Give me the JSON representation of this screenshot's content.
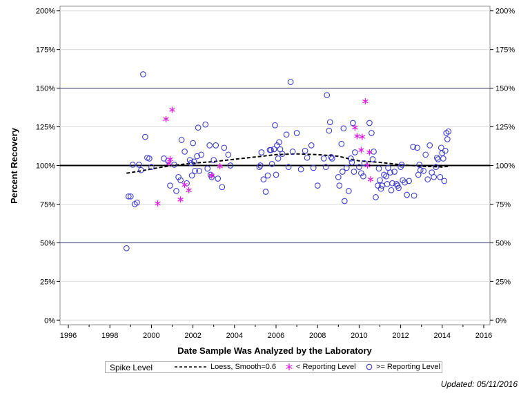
{
  "chart_data": {
    "type": "scatter",
    "title": "",
    "xlabel": "Date Sample Was Analyzed by the Laboratory",
    "ylabel": "Percent Recovery",
    "xlim": [
      1995.6,
      2016.3
    ],
    "ylim": [
      -3,
      203
    ],
    "x_ticks": [
      1996,
      1998,
      2000,
      2002,
      2004,
      2006,
      2008,
      2010,
      2012,
      2014,
      2016
    ],
    "x_tick_labels": [
      "1996",
      "1998",
      "2000",
      "2002",
      "2004",
      "2006",
      "2008",
      "2010",
      "2012",
      "2014",
      "2016"
    ],
    "y_ticks": [
      0,
      25,
      50,
      75,
      100,
      125,
      150,
      175,
      200
    ],
    "y_tick_labels": [
      "0%",
      "25%",
      "50%",
      "75%",
      "100%",
      "125%",
      "150%",
      "175%",
      "200%"
    ],
    "reference_lines": {
      "thick": [
        100
      ],
      "thin": [
        50,
        150
      ],
      "grid_color": "#dcdcdc",
      "thin_color": "#2a2a66"
    },
    "legend": {
      "title": "Spike Level",
      "loess_label": "Loess, Smooth=0.6",
      "below_label": "< Reporting Level",
      "above_label": ">= Reporting Level"
    },
    "colors": {
      "circle": "#3d3dc8",
      "star": "#e020e0",
      "loess": "#000000"
    },
    "series": [
      {
        "name": "Loess, Smooth=0.6",
        "style": "dashed-line",
        "points": [
          [
            1998.8,
            95
          ],
          [
            1999.5,
            96.5
          ],
          [
            2000.3,
            98.5
          ],
          [
            2001.0,
            100
          ],
          [
            2002.0,
            101.5
          ],
          [
            2003.0,
            102.5
          ],
          [
            2004.0,
            104
          ],
          [
            2005.0,
            105.5
          ],
          [
            2006.0,
            107
          ],
          [
            2007.0,
            107.5
          ],
          [
            2008.0,
            107
          ],
          [
            2009.0,
            106
          ],
          [
            2009.6,
            104
          ],
          [
            2010.0,
            103
          ],
          [
            2010.5,
            102.5
          ],
          [
            2011.0,
            102
          ],
          [
            2012.0,
            100.5
          ],
          [
            2013.0,
            99.5
          ],
          [
            2014.0,
            99
          ],
          [
            2014.3,
            99.5
          ]
        ]
      },
      {
        "name": "< Reporting Level",
        "style": "star",
        "points": [
          [
            2001.0,
            136
          ],
          [
            2000.7,
            130
          ],
          [
            2000.9,
            104
          ],
          [
            2000.85,
            101.5
          ],
          [
            2000.3,
            75.5
          ],
          [
            2001.4,
            78
          ],
          [
            2001.6,
            87.5
          ],
          [
            2001.8,
            84
          ],
          [
            2002.9,
            93.5
          ],
          [
            2003.3,
            99.5
          ],
          [
            2009.8,
            124.5
          ],
          [
            2010.3,
            141.5
          ],
          [
            2010.1,
            110
          ],
          [
            2010.5,
            108.5
          ],
          [
            2009.9,
            119
          ],
          [
            2010.15,
            118.5
          ],
          [
            2010.4,
            100
          ],
          [
            2010.55,
            91
          ]
        ]
      },
      {
        "name": ">= Reporting Level",
        "style": "circle",
        "points": [
          [
            1998.8,
            46.5
          ],
          [
            1998.9,
            80
          ],
          [
            1999.0,
            80
          ],
          [
            1999.1,
            100.5
          ],
          [
            1999.2,
            75
          ],
          [
            1999.3,
            76
          ],
          [
            1999.4,
            100.5
          ],
          [
            1999.5,
            97
          ],
          [
            1999.6,
            159
          ],
          [
            1999.7,
            118.5
          ],
          [
            1999.8,
            105
          ],
          [
            1999.9,
            104.5
          ],
          [
            2000.0,
            99
          ],
          [
            2000.6,
            104.5
          ],
          [
            2000.8,
            103
          ],
          [
            2000.9,
            87
          ],
          [
            2001.1,
            100.5
          ],
          [
            2001.2,
            83.5
          ],
          [
            2001.3,
            92.5
          ],
          [
            2001.4,
            90.5
          ],
          [
            2001.45,
            116.5
          ],
          [
            2001.6,
            109
          ],
          [
            2001.7,
            88.5
          ],
          [
            2001.85,
            103.5
          ],
          [
            2001.9,
            101.5
          ],
          [
            2001.95,
            93.5
          ],
          [
            2002.0,
            114.5
          ],
          [
            2002.05,
            102.5
          ],
          [
            2002.1,
            96.5
          ],
          [
            2002.2,
            106
          ],
          [
            2002.25,
            124.5
          ],
          [
            2002.3,
            96.5
          ],
          [
            2002.4,
            107
          ],
          [
            2002.6,
            126.5
          ],
          [
            2002.7,
            98
          ],
          [
            2002.8,
            113
          ],
          [
            2002.85,
            94
          ],
          [
            2002.9,
            92.5
          ],
          [
            2003.0,
            103.5
          ],
          [
            2003.1,
            113
          ],
          [
            2003.2,
            91.5
          ],
          [
            2003.4,
            86
          ],
          [
            2003.5,
            111.5
          ],
          [
            2003.7,
            107
          ],
          [
            2003.8,
            100
          ],
          [
            2005.2,
            99
          ],
          [
            2005.25,
            100
          ],
          [
            2005.3,
            108.5
          ],
          [
            2005.4,
            91
          ],
          [
            2005.5,
            83
          ],
          [
            2005.6,
            93.5
          ],
          [
            2005.7,
            110
          ],
          [
            2005.75,
            110
          ],
          [
            2005.8,
            101
          ],
          [
            2005.9,
            110.5
          ],
          [
            2005.95,
            126
          ],
          [
            2006.0,
            94
          ],
          [
            2006.05,
            113
          ],
          [
            2006.1,
            104.5
          ],
          [
            2006.15,
            115
          ],
          [
            2006.2,
            110.5
          ],
          [
            2006.3,
            107.5
          ],
          [
            2006.5,
            120
          ],
          [
            2006.6,
            99
          ],
          [
            2006.7,
            154
          ],
          [
            2006.8,
            109
          ],
          [
            2007.0,
            121
          ],
          [
            2007.2,
            97.5
          ],
          [
            2007.4,
            109.5
          ],
          [
            2007.5,
            105
          ],
          [
            2007.7,
            113
          ],
          [
            2007.8,
            98.5
          ],
          [
            2008.0,
            87
          ],
          [
            2008.3,
            104.5
          ],
          [
            2008.4,
            99
          ],
          [
            2008.45,
            145.5
          ],
          [
            2008.55,
            122.5
          ],
          [
            2008.6,
            128
          ],
          [
            2008.65,
            105.5
          ],
          [
            2008.7,
            104.5
          ],
          [
            2009.0,
            92.5
          ],
          [
            2009.05,
            87
          ],
          [
            2009.15,
            114
          ],
          [
            2009.2,
            96
          ],
          [
            2009.25,
            124
          ],
          [
            2009.3,
            77
          ],
          [
            2009.4,
            98.5
          ],
          [
            2009.5,
            83.5
          ],
          [
            2009.6,
            104.5
          ],
          [
            2009.65,
            102
          ],
          [
            2009.7,
            127.5
          ],
          [
            2009.75,
            96
          ],
          [
            2009.8,
            108.5
          ],
          [
            2010.0,
            99
          ],
          [
            2010.1,
            95
          ],
          [
            2010.2,
            93
          ],
          [
            2010.25,
            101.5
          ],
          [
            2010.5,
            127.5
          ],
          [
            2010.6,
            121
          ],
          [
            2010.65,
            104
          ],
          [
            2010.7,
            109
          ],
          [
            2010.8,
            79.5
          ],
          [
            2010.9,
            87
          ],
          [
            2010.95,
            98
          ],
          [
            2011.0,
            90.5
          ],
          [
            2011.05,
            85
          ],
          [
            2011.1,
            87
          ],
          [
            2011.2,
            94
          ],
          [
            2011.3,
            93
          ],
          [
            2011.35,
            88
          ],
          [
            2011.4,
            98.5
          ],
          [
            2011.5,
            95.5
          ],
          [
            2011.55,
            84
          ],
          [
            2011.6,
            88.5
          ],
          [
            2011.7,
            96
          ],
          [
            2011.8,
            88
          ],
          [
            2011.85,
            87
          ],
          [
            2011.9,
            85.5
          ],
          [
            2012.0,
            99
          ],
          [
            2012.05,
            100.5
          ],
          [
            2012.1,
            90.5
          ],
          [
            2012.2,
            89
          ],
          [
            2012.3,
            81
          ],
          [
            2012.4,
            90
          ],
          [
            2012.6,
            112
          ],
          [
            2012.65,
            80.5
          ],
          [
            2012.8,
            111.5
          ],
          [
            2012.85,
            94
          ],
          [
            2012.9,
            100.5
          ],
          [
            2012.95,
            97
          ],
          [
            2013.1,
            96.5
          ],
          [
            2013.2,
            107
          ],
          [
            2013.3,
            91
          ],
          [
            2013.4,
            113
          ],
          [
            2013.5,
            95.5
          ],
          [
            2013.6,
            92.5
          ],
          [
            2013.7,
            99
          ],
          [
            2013.75,
            105
          ],
          [
            2013.8,
            104
          ],
          [
            2013.9,
            92.5
          ],
          [
            2013.95,
            111.5
          ],
          [
            2014.0,
            108
          ],
          [
            2014.05,
            104.5
          ],
          [
            2014.1,
            90
          ],
          [
            2014.15,
            109.5
          ],
          [
            2014.2,
            121
          ],
          [
            2014.25,
            117
          ],
          [
            2014.3,
            122
          ]
        ]
      }
    ]
  },
  "footer": {
    "updated": "Updated: 05/11/2016"
  }
}
